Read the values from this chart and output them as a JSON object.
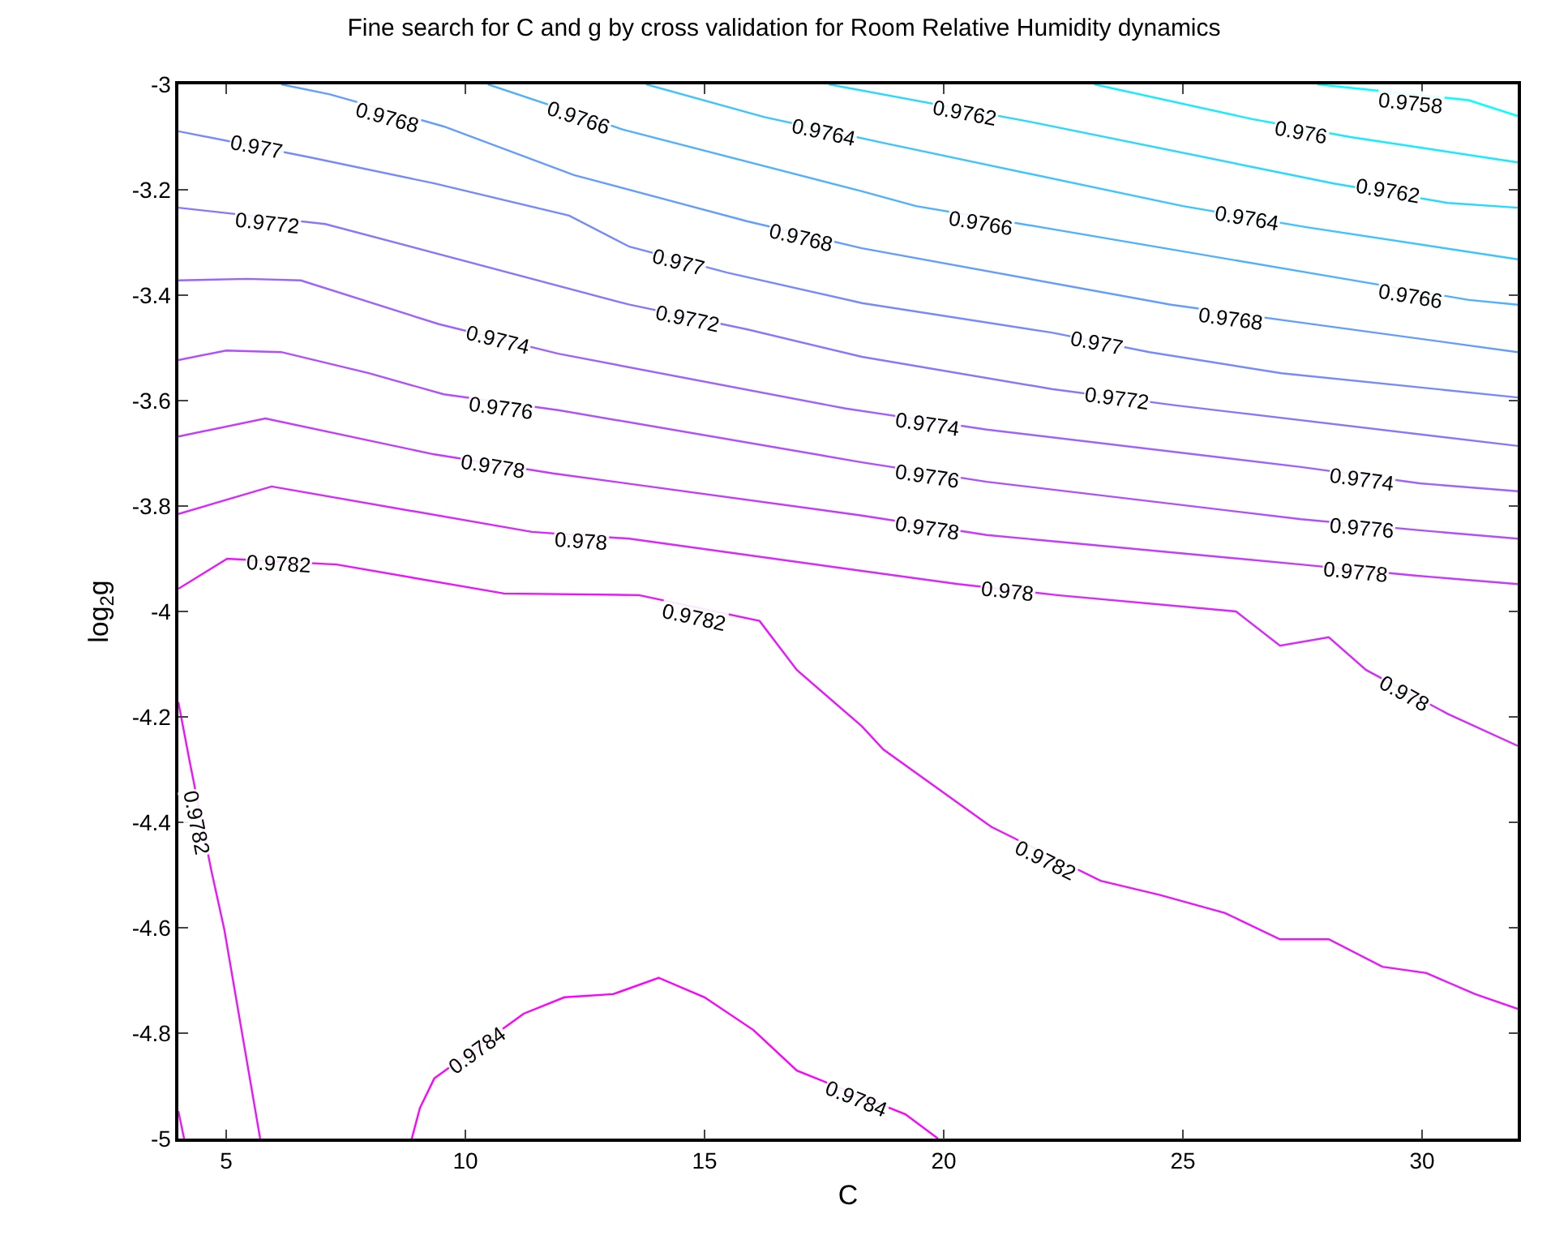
{
  "chart_data": {
    "type": "line",
    "title": "Fine search for C and g by cross validation for Room Relative Humidity dynamics",
    "xlabel": "C",
    "ylabel": "log$_{2}$g",
    "xlim": [
      4,
      32
    ],
    "xticks": [
      5,
      10,
      15,
      20,
      25,
      30
    ],
    "ylim": [
      -5,
      -3
    ],
    "yticks": [
      -5,
      -4.8,
      -4.6,
      -4.4,
      -4.2,
      -4,
      -3.8,
      -3.6,
      -3.4,
      -3.2,
      -3
    ],
    "marker": "none",
    "line_style": "solid",
    "series": [
      {
        "color": "#00ffff",
        "x": [
          27.81,
          30.97,
          32
        ],
        "values": [
          -3,
          -3.03,
          -3.06
        ]
      },
      {
        "color": "#14ebff",
        "x": [
          23.15,
          26.45,
          28.5,
          32
        ],
        "values": [
          -3,
          -3.066,
          -3.1,
          -3.148
        ]
      },
      {
        "color": "#27d8ff",
        "x": [
          17.6,
          21.8,
          28.15,
          30.54,
          32
        ],
        "values": [
          -3,
          -3.071,
          -3.188,
          -3.225,
          -3.234
        ]
      },
      {
        "color": "#3bc4ff",
        "x": [
          13.78,
          16.25,
          18.73,
          25.0,
          27.58,
          32
        ],
        "values": [
          -3,
          -3.062,
          -3.111,
          -3.231,
          -3.271,
          -3.332
        ]
      },
      {
        "color": "#4eb1ff",
        "x": [
          10.47,
          13.3,
          18.29,
          19.42,
          22.03,
          28.38,
          30.98,
          32
        ],
        "values": [
          -3,
          -3.086,
          -3.203,
          -3.231,
          -3.271,
          -3.369,
          -3.409,
          -3.418
        ]
      },
      {
        "color": "#629dff",
        "x": [
          6.15,
          7.17,
          9.55,
          12.27,
          15.9,
          18.29,
          24.75,
          27.23,
          32
        ],
        "values": [
          -3,
          -3.019,
          -3.08,
          -3.172,
          -3.26,
          -3.311,
          -3.418,
          -3.449,
          -3.508
        ]
      },
      {
        "color": "#7689ff",
        "x": [
          4,
          6.73,
          9.35,
          12.17,
          13.43,
          15.47,
          18.29,
          22.26,
          24.3,
          27.06,
          32
        ],
        "values": [
          -3.089,
          -3.138,
          -3.188,
          -3.249,
          -3.308,
          -3.357,
          -3.415,
          -3.471,
          -3.508,
          -3.548,
          -3.594
        ]
      },
      {
        "color": "#8976ff",
        "x": [
          4,
          7.07,
          13.43,
          15.9,
          18.29,
          22.26,
          24.85,
          32
        ],
        "values": [
          -3.234,
          -3.265,
          -3.418,
          -3.465,
          -3.517,
          -3.578,
          -3.609,
          -3.686
        ]
      },
      {
        "color": "#9d62ff",
        "x": [
          4,
          5.44,
          6.56,
          9.45,
          11.94,
          17.95,
          20.9,
          27.47,
          29.95,
          32
        ],
        "values": [
          -3.372,
          -3.369,
          -3.372,
          -3.455,
          -3.511,
          -3.615,
          -3.655,
          -3.726,
          -3.757,
          -3.772
        ]
      },
      {
        "color": "#b14eff",
        "x": [
          4,
          5.0,
          6.15,
          7.98,
          9.55,
          11.94,
          18.29,
          20.9,
          27.47,
          29.95,
          32
        ],
        "values": [
          -3.523,
          -3.505,
          -3.508,
          -3.548,
          -3.588,
          -3.618,
          -3.717,
          -3.754,
          -3.825,
          -3.846,
          -3.862
        ]
      },
      {
        "color": "#c43bff",
        "x": [
          4,
          5.82,
          9.35,
          11.83,
          18.29,
          20.9,
          27.47,
          29.85,
          32
        ],
        "values": [
          -3.668,
          -3.634,
          -3.702,
          -3.738,
          -3.818,
          -3.855,
          -3.911,
          -3.932,
          -3.948
        ]
      },
      {
        "color": "#d827ff",
        "x": [
          4,
          5.95,
          11.39,
          13.43,
          18.29,
          20.3,
          22.37,
          26.11,
          27.03,
          28.05,
          28.83,
          30.53,
          32
        ],
        "values": [
          -3.815,
          -3.763,
          -3.849,
          -3.862,
          -3.923,
          -3.948,
          -3.969,
          -4.0,
          -4.065,
          -4.049,
          -4.111,
          -4.194,
          -4.255
        ]
      },
      {
        "color": "#eb14ff",
        "x": [
          4,
          5.02,
          7.31,
          10.81,
          13.63,
          16.15,
          16.93,
          18.29,
          18.74,
          21.0,
          23.28,
          24.52,
          25.88,
          27.03,
          28.05,
          29.17,
          30.09,
          31.11,
          32
        ],
        "values": [
          -3.957,
          -3.9,
          -3.911,
          -3.966,
          -3.969,
          -4.018,
          -4.111,
          -4.218,
          -4.262,
          -4.409,
          -4.511,
          -4.538,
          -4.572,
          -4.622,
          -4.622,
          -4.674,
          -4.686,
          -4.726,
          -4.754
        ]
      },
      {
        "color": "#eb14ff",
        "x": [
          4,
          4.24,
          4.69,
          4.96,
          5.71
        ],
        "values": [
          -4.172,
          -4.286,
          -4.492,
          -4.603,
          -5
        ]
      },
      {
        "color": "#eb14ff",
        "x": [
          4,
          4.12
        ],
        "values": [
          -4.948,
          -5
        ]
      },
      {
        "color": "#ff00ff",
        "x": [
          8.88,
          9.05,
          9.35,
          11.22,
          12.07,
          13.09,
          14.04,
          15.0,
          16.02,
          16.93,
          19.2,
          19.88
        ],
        "values": [
          -5,
          -4.942,
          -4.886,
          -4.763,
          -4.732,
          -4.726,
          -4.695,
          -4.732,
          -4.794,
          -4.871,
          -4.954,
          -5
        ]
      }
    ],
    "annotations": [
      {
        "text": "0.9758",
        "x": 29.75,
        "y": -3.034
      },
      {
        "text": "0.976",
        "x": 27.47,
        "y": -3.092
      },
      {
        "text": "0.9762",
        "x": 20.43,
        "y": -3.055
      },
      {
        "text": "0.9762",
        "x": 29.28,
        "y": -3.203
      },
      {
        "text": "0.9764",
        "x": 17.5,
        "y": -3.092
      },
      {
        "text": "0.9764",
        "x": 26.35,
        "y": -3.255
      },
      {
        "text": "0.9766",
        "x": 12.37,
        "y": -3.062
      },
      {
        "text": "0.9766",
        "x": 20.78,
        "y": -3.262
      },
      {
        "text": "0.9766",
        "x": 29.75,
        "y": -3.4
      },
      {
        "text": "0.9768",
        "x": 8.38,
        "y": -3.062
      },
      {
        "text": "0.9768",
        "x": 17.03,
        "y": -3.292
      },
      {
        "text": "0.9768",
        "x": 26.0,
        "y": -3.446
      },
      {
        "text": "0.977",
        "x": 5.64,
        "y": -3.117
      },
      {
        "text": "0.977",
        "x": 14.45,
        "y": -3.338
      },
      {
        "text": "0.977",
        "x": 23.22,
        "y": -3.492
      },
      {
        "text": "0.9772",
        "x": 5.88,
        "y": -3.262
      },
      {
        "text": "0.9772",
        "x": 14.66,
        "y": -3.446
      },
      {
        "text": "0.9772",
        "x": 23.62,
        "y": -3.594
      },
      {
        "text": "0.9774",
        "x": 10.69,
        "y": -3.486
      },
      {
        "text": "0.9774",
        "x": 19.65,
        "y": -3.646
      },
      {
        "text": "0.9774",
        "x": 28.73,
        "y": -3.748
      },
      {
        "text": "0.9776",
        "x": 10.75,
        "y": -3.615
      },
      {
        "text": "0.9776",
        "x": 19.65,
        "y": -3.742
      },
      {
        "text": "0.9776",
        "x": 28.73,
        "y": -3.84
      },
      {
        "text": "0.9778",
        "x": 10.58,
        "y": -3.726
      },
      {
        "text": "0.9778",
        "x": 19.65,
        "y": -3.84
      },
      {
        "text": "0.9778",
        "x": 28.6,
        "y": -3.926
      },
      {
        "text": "0.978",
        "x": 12.41,
        "y": -3.865
      },
      {
        "text": "0.978",
        "x": 21.35,
        "y": -3.963
      },
      {
        "text": "0.978",
        "x": 29.63,
        "y": -4.154
      },
      {
        "text": "0.9782",
        "x": 6.1,
        "y": -3.908
      },
      {
        "text": "0.9782",
        "x": 14.77,
        "y": -4.012
      },
      {
        "text": "0.9782",
        "x": 22.14,
        "y": -4.471
      },
      {
        "text": "0.9782",
        "x": 4.4,
        "y": -4.4
      },
      {
        "text": "0.9784",
        "x": 10.24,
        "y": -4.831
      },
      {
        "text": "0.9784",
        "x": 18.18,
        "y": -4.926
      }
    ]
  }
}
